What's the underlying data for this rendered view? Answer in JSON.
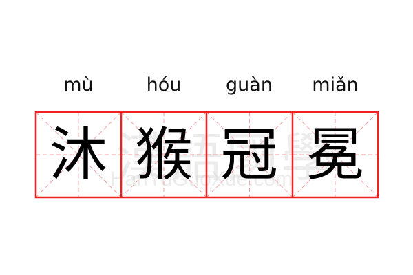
{
  "idiom": [
    {
      "pinyin": "mù",
      "char": "沐"
    },
    {
      "pinyin": "hóu",
      "char": "猴"
    },
    {
      "pinyin": "guàn",
      "char": "冠"
    },
    {
      "pinyin": "miǎn",
      "char": "冕"
    }
  ],
  "watermark": {
    "chinese": "漢語國學",
    "latin": "HanYuGuoXue.com"
  },
  "colors": {
    "border": "#ee2222",
    "guide": "#f4a0a0",
    "text": "#000000"
  }
}
